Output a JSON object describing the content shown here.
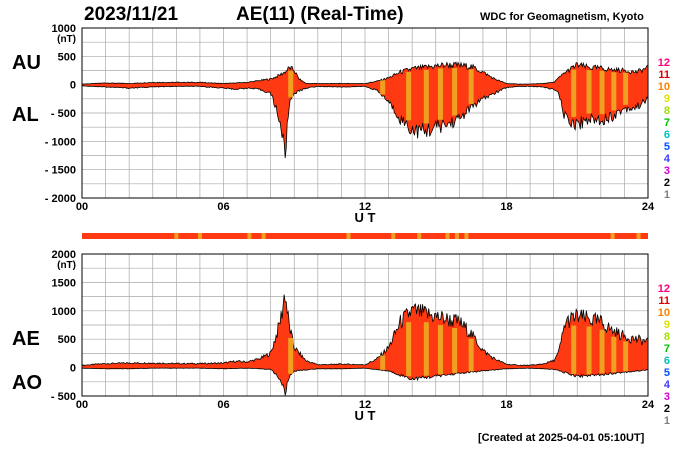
{
  "header": {
    "date": "2023/11/21",
    "title": "AE(11) (Real-Time)",
    "source": "WDC for Geomagnetism, Kyoto"
  },
  "footer": {
    "created": "[Created at 2025-04-01 05:10UT]"
  },
  "colors": {
    "fill": "#ff3a12",
    "band": "#f0a020",
    "grid": "#a8a8a8",
    "stations": [
      "#c8c8c8",
      "#808080",
      "#000000",
      "#d000d0",
      "#4040ff",
      "#0050ff",
      "#00c0c0",
      "#00c000",
      "#a0e000",
      "#e0e000",
      "#ff8000",
      "#e00000",
      "#ff0080"
    ]
  },
  "scale_labels": [
    "12",
    "11",
    "10",
    "9",
    "8",
    "7",
    "6",
    "5",
    "4",
    "3",
    "2",
    "1"
  ],
  "chart_data": [
    {
      "type": "area",
      "labels": [
        "AU",
        "AL"
      ],
      "unit": "(nT)",
      "xlabel": "U T",
      "ylim": [
        -2000,
        1000
      ],
      "xlim": [
        0,
        24
      ],
      "yticks": [
        "1000",
        "500",
        "0",
        "- 500",
        "- 1000",
        "- 1500",
        "- 2000"
      ],
      "xticks": [
        "00",
        "06",
        "12",
        "18",
        "24"
      ],
      "grid": true,
      "series": [
        {
          "name": "AU",
          "x": [
            0,
            1,
            2,
            3,
            4,
            5,
            6,
            6.5,
            7,
            7.5,
            8,
            8.3,
            8.6,
            8.8,
            9,
            9.2,
            9.5,
            10,
            11,
            12,
            12.5,
            13,
            13.5,
            14,
            14.5,
            15,
            15.5,
            16,
            16.5,
            17,
            17.5,
            18,
            18.5,
            19,
            19.5,
            20,
            20.5,
            21,
            21.5,
            22,
            22.5,
            23,
            23.5,
            24
          ],
          "y": [
            10,
            30,
            20,
            40,
            40,
            40,
            20,
            30,
            40,
            70,
            100,
            150,
            220,
            300,
            250,
            100,
            20,
            20,
            20,
            20,
            60,
            120,
            220,
            280,
            300,
            330,
            350,
            340,
            320,
            220,
            100,
            20,
            10,
            10,
            20,
            40,
            220,
            350,
            300,
            290,
            260,
            250,
            220,
            300
          ]
        },
        {
          "name": "AL",
          "x": [
            0,
            1,
            2,
            3,
            4,
            5,
            6,
            6.5,
            7,
            7.5,
            8,
            8.3,
            8.5,
            8.6,
            8.7,
            8.8,
            9,
            9.5,
            10,
            11,
            12,
            12.5,
            13,
            13.5,
            14,
            14.5,
            15,
            15.5,
            16,
            16.5,
            17,
            17.5,
            18,
            18.5,
            19,
            19.5,
            20,
            20.2,
            20.5,
            21,
            21.5,
            22,
            22.5,
            23,
            23.5,
            24
          ],
          "y": [
            -20,
            -40,
            -60,
            -40,
            -30,
            -30,
            -60,
            -80,
            -60,
            -80,
            -150,
            -500,
            -900,
            -1250,
            -800,
            -300,
            -150,
            -60,
            -30,
            -40,
            -30,
            -100,
            -300,
            -600,
            -800,
            -820,
            -750,
            -700,
            -600,
            -400,
            -250,
            -150,
            -50,
            -30,
            -30,
            -40,
            -80,
            -150,
            -600,
            -700,
            -600,
            -620,
            -550,
            -420,
            -400,
            -250
          ]
        }
      ],
      "bands_ut": [
        8.85,
        12.75,
        13.85,
        14.6,
        15.2,
        15.8,
        16.5,
        20.85,
        21.5,
        22.05,
        22.55,
        23.05
      ]
    },
    {
      "type": "area",
      "labels": [
        "AE",
        "AO"
      ],
      "unit": "(nT)",
      "xlabel": "U T",
      "ylim": [
        -500,
        2000
      ],
      "xlim": [
        0,
        24
      ],
      "yticks": [
        "2000",
        "1500",
        "1000",
        "500",
        "0",
        "- 500"
      ],
      "xticks": [
        "00",
        "06",
        "12",
        "18",
        "24"
      ],
      "grid": true,
      "series": [
        {
          "name": "AE",
          "x": [
            0,
            1,
            2,
            3,
            4,
            5,
            6,
            6.5,
            7,
            7.5,
            8,
            8.3,
            8.5,
            8.6,
            8.7,
            8.8,
            9,
            9.5,
            10,
            11,
            12,
            12.5,
            13,
            13.5,
            14,
            14.5,
            15,
            15.5,
            16,
            16.5,
            17,
            17.5,
            18,
            18.5,
            19,
            19.5,
            20,
            20.2,
            20.5,
            21,
            21.5,
            22,
            22.5,
            23,
            23.5,
            24
          ],
          "y": [
            40,
            70,
            80,
            80,
            70,
            70,
            80,
            110,
            100,
            150,
            250,
            650,
            1000,
            1350,
            1000,
            700,
            350,
            120,
            50,
            60,
            50,
            150,
            350,
            800,
            1000,
            950,
            900,
            850,
            800,
            600,
            300,
            150,
            60,
            40,
            40,
            60,
            120,
            250,
            800,
            900,
            850,
            800,
            650,
            550,
            500,
            450
          ]
        },
        {
          "name": "AO",
          "x": [
            0,
            1,
            2,
            3,
            4,
            5,
            6,
            7,
            8,
            8.3,
            8.5,
            8.6,
            8.7,
            8.8,
            9,
            10,
            11,
            12,
            13,
            14,
            15,
            16,
            17,
            18,
            19,
            20,
            21,
            22,
            23,
            24
          ],
          "y": [
            -10,
            -20,
            -20,
            -10,
            -10,
            -10,
            -20,
            -10,
            -30,
            -150,
            -300,
            -470,
            -300,
            -150,
            -60,
            -20,
            -20,
            -10,
            -60,
            -200,
            -150,
            -100,
            -60,
            -20,
            -10,
            -30,
            -150,
            -120,
            -80,
            -40
          ]
        }
      ],
      "bands_ut": [
        8.85,
        12.75,
        13.85,
        14.6,
        15.2,
        15.8,
        16.5,
        20.85,
        21.5,
        22.05,
        22.55,
        23.05
      ]
    }
  ],
  "station_strip": {
    "ticks_ut": [
      4.0,
      5.0,
      7.1,
      7.7,
      11.3,
      13.2,
      14.3,
      15.5,
      15.9,
      16.3,
      22.5,
      23.6
    ]
  }
}
